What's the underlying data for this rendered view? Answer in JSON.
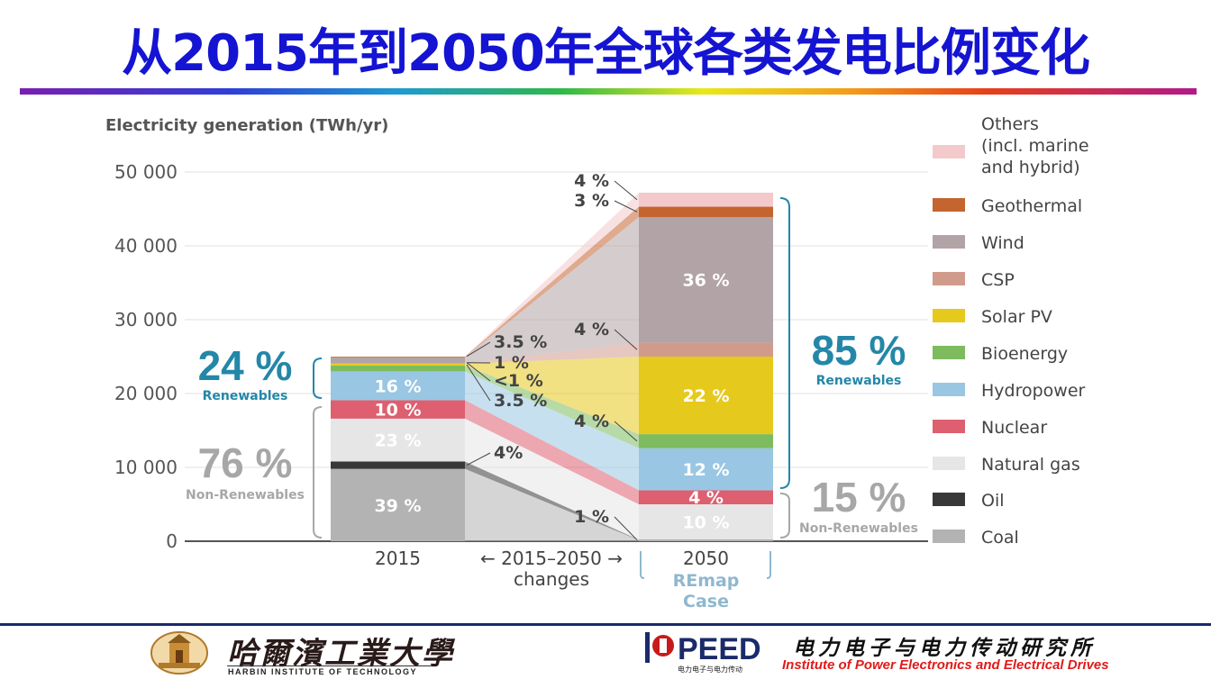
{
  "slide": {
    "title": "从2015年到2050年全球各类发电比例变化"
  },
  "colors": {
    "title": "#1414d2",
    "others": "#f3c9cc",
    "geothermal": "#c4652f",
    "wind": "#b2a3a6",
    "csp": "#d19b8c",
    "solar_pv": "#e6c91d",
    "bioenergy": "#7dbb5e",
    "hydropower": "#99c6e3",
    "nuclear": "#de5f6f",
    "natural_gas": "#e6e6e6",
    "oil": "#383838",
    "coal": "#b3b3b3",
    "accent_teal": "#2487a8",
    "non_renewable_gray": "#a7a7a7"
  },
  "chart_data": {
    "type": "bar",
    "title": "Electricity generation (TWh/yr)",
    "ylim": [
      0,
      50000
    ],
    "yticks": [
      "50 000",
      "40 000",
      "30 000",
      "20 000",
      "10 000",
      "0"
    ],
    "ytick_values": [
      50000,
      40000,
      30000,
      20000,
      10000,
      0
    ],
    "grid": true,
    "legend_position": "right",
    "categories": [
      "2015",
      "2050"
    ],
    "category_labels": [
      "2015",
      "2050"
    ],
    "middle_label": [
      "← 2015–2050 →",
      "changes"
    ],
    "remap_label": [
      "REmap",
      "Case"
    ],
    "series": [
      {
        "name": "Coal",
        "key": "coal",
        "values": [
          9800,
          150
        ]
      },
      {
        "name": "Oil",
        "key": "oil",
        "values": [
          1000,
          50
        ]
      },
      {
        "name": "Natural gas",
        "key": "natural_gas",
        "values": [
          5800,
          4800
        ]
      },
      {
        "name": "Nuclear",
        "key": "nuclear",
        "values": [
          2500,
          1900
        ]
      },
      {
        "name": "Hydropower",
        "key": "hydropower",
        "values": [
          3900,
          5700
        ]
      },
      {
        "name": "Bioenergy",
        "key": "bioenergy",
        "values": [
          800,
          1900
        ]
      },
      {
        "name": "Solar PV",
        "key": "solar_pv",
        "values": [
          250,
          10500
        ]
      },
      {
        "name": "CSP",
        "key": "csp",
        "values": [
          20,
          1900
        ]
      },
      {
        "name": "Wind",
        "key": "wind",
        "values": [
          850,
          17000
        ]
      },
      {
        "name": "Geothermal",
        "key": "geothermal",
        "values": [
          80,
          1400
        ]
      },
      {
        "name": "Others (incl. marine and hybrid)",
        "key": "others",
        "values": [
          0,
          1900
        ]
      }
    ],
    "legend": [
      {
        "key": "others",
        "lines": [
          "Others",
          "(incl. marine",
          "and hybrid)"
        ]
      },
      {
        "key": "geothermal",
        "lines": [
          "Geothermal"
        ]
      },
      {
        "key": "wind",
        "lines": [
          "Wind"
        ]
      },
      {
        "key": "csp",
        "lines": [
          "CSP"
        ]
      },
      {
        "key": "solar_pv",
        "lines": [
          "Solar PV"
        ]
      },
      {
        "key": "bioenergy",
        "lines": [
          "Bioenergy"
        ]
      },
      {
        "key": "hydropower",
        "lines": [
          "Hydropower"
        ]
      },
      {
        "key": "nuclear",
        "lines": [
          "Nuclear"
        ]
      },
      {
        "key": "natural_gas",
        "lines": [
          "Natural gas"
        ]
      },
      {
        "key": "oil",
        "lines": [
          "Oil"
        ]
      },
      {
        "key": "coal",
        "lines": [
          "Coal"
        ]
      }
    ],
    "labels_2015": [
      {
        "series": "hydropower",
        "text": "16 %"
      },
      {
        "series": "nuclear",
        "text": "10 %"
      },
      {
        "series": "natural_gas",
        "text": "23 %"
      },
      {
        "series": "coal",
        "text": "39 %"
      }
    ],
    "labels_2050": [
      {
        "series": "wind",
        "text": "36 %"
      },
      {
        "series": "solar_pv",
        "text": "22 %"
      },
      {
        "series": "hydropower",
        "text": "12 %"
      },
      {
        "series": "nuclear",
        "text": "4 %"
      },
      {
        "series": "natural_gas",
        "text": "10 %"
      }
    ],
    "callouts_2015": [
      {
        "series": "wind",
        "text": "3.5 %"
      },
      {
        "series": "solar_pv",
        "text": "1 %"
      },
      {
        "series": "csp",
        "text": "<1 %"
      },
      {
        "series": "bioenergy",
        "text": "3.5 %"
      },
      {
        "series": "oil",
        "text": "4%"
      }
    ],
    "callouts_2050": [
      {
        "series": "others",
        "text": "4 %"
      },
      {
        "series": "geothermal",
        "text": "3 %"
      },
      {
        "series": "csp",
        "text": "4 %"
      },
      {
        "series": "bioenergy",
        "text": "4 %"
      },
      {
        "series": "oil",
        "text": "1 %"
      }
    ],
    "share_2015_renewables": {
      "value": "24 %",
      "label": "Renewables"
    },
    "share_2015_non_renewables": {
      "value": "76 %",
      "label": "Non-Renewables"
    },
    "share_2050_renewables": {
      "value": "85 %",
      "label": "Renewables"
    },
    "share_2050_non_renewables": {
      "value": "15 %",
      "label": "Non-Renewables"
    }
  },
  "footer": {
    "university_cn": "哈爾濱工業大學",
    "university_en": "HARBIN INSTITUTE OF TECHNOLOGY",
    "peed_logo_text": "PEED",
    "peed_subtext": "电力电子与电力传动",
    "institute_cn": "电力电子与电力传动研究所",
    "institute_en": "Institute of Power Electronics and Electrical Drives"
  }
}
